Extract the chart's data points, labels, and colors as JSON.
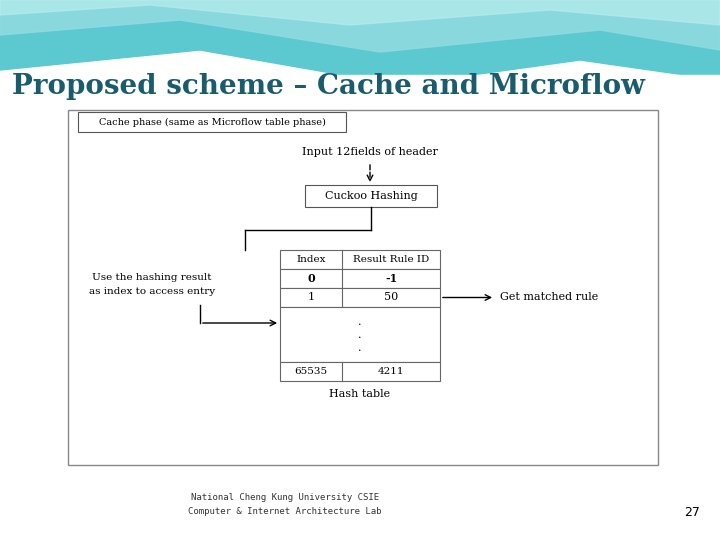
{
  "title": "Proposed scheme – Cache and Microflow",
  "title_color": "#1a5c6e",
  "title_fontsize": 20,
  "footer_text1": "National Cheng Kung University CSIE",
  "footer_text2": "Computer & Internet Architecture Lab",
  "footer_page": "27",
  "cache_phase_label": "Cache phase (same as Microflow table phase)",
  "input_label": "Input 12fields of header",
  "cuckoo_label": "Cuckoo Hashing",
  "hash_table_label": "Hash table",
  "col1_header": "Index",
  "col2_header": "Result Rule ID",
  "left_label1": "Use the hashing result",
  "left_label2": "as index to access entry",
  "right_label": "Get matched rule",
  "wave_color1": "#5cc8d0",
  "wave_color2": "#90dce0",
  "wave_color3": "#b8ecee",
  "bg_color": "#d8eff3"
}
